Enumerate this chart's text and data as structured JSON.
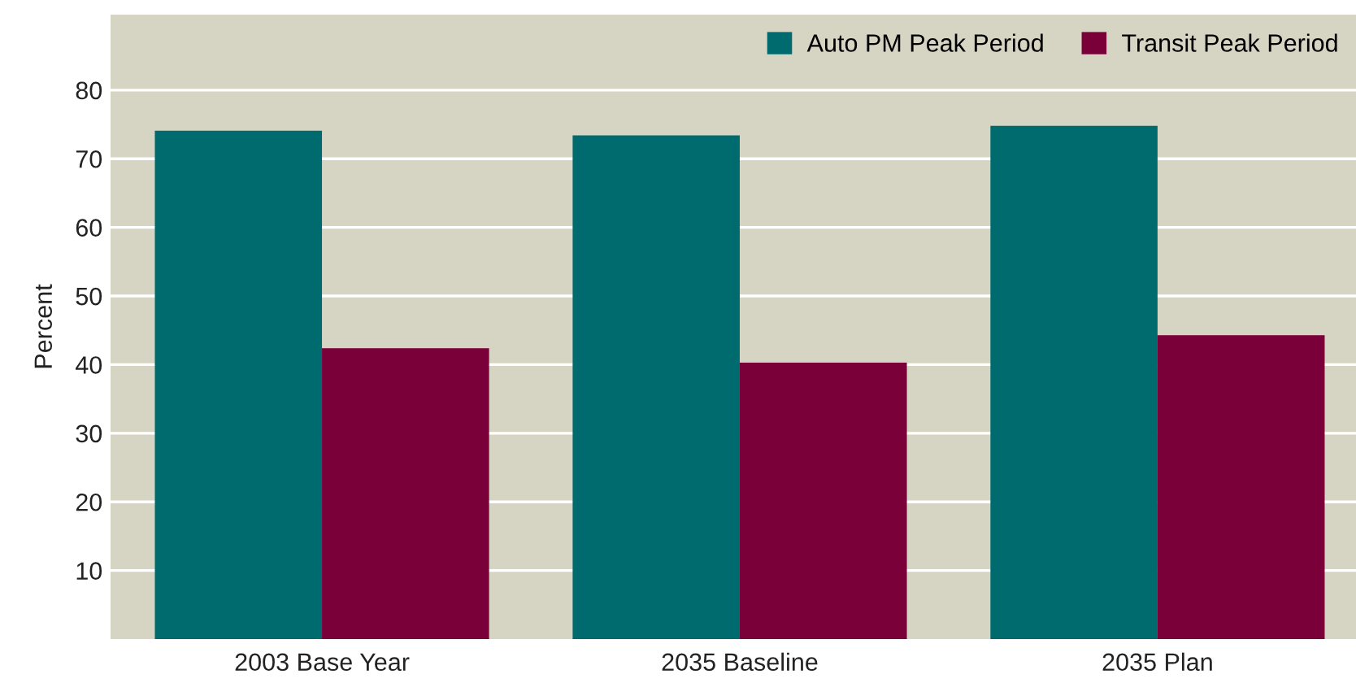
{
  "chart_data": {
    "type": "bar",
    "ylabel": "Percent",
    "categories": [
      "2003 Base Year",
      "2035 Baseline",
      "2035 Plan"
    ],
    "series": [
      {
        "name": "Auto PM Peak Period",
        "color": "#006b6e",
        "values": [
          74.1,
          73.4,
          74.8
        ]
      },
      {
        "name": "Transit Peak Period",
        "color": "#7a003a",
        "values": [
          42.4,
          40.3,
          44.3
        ]
      }
    ],
    "ylim": [
      0,
      91
    ],
    "yticks": [
      10,
      20,
      30,
      40,
      50,
      60,
      70,
      80
    ],
    "grid": "y",
    "legend": "top right"
  }
}
